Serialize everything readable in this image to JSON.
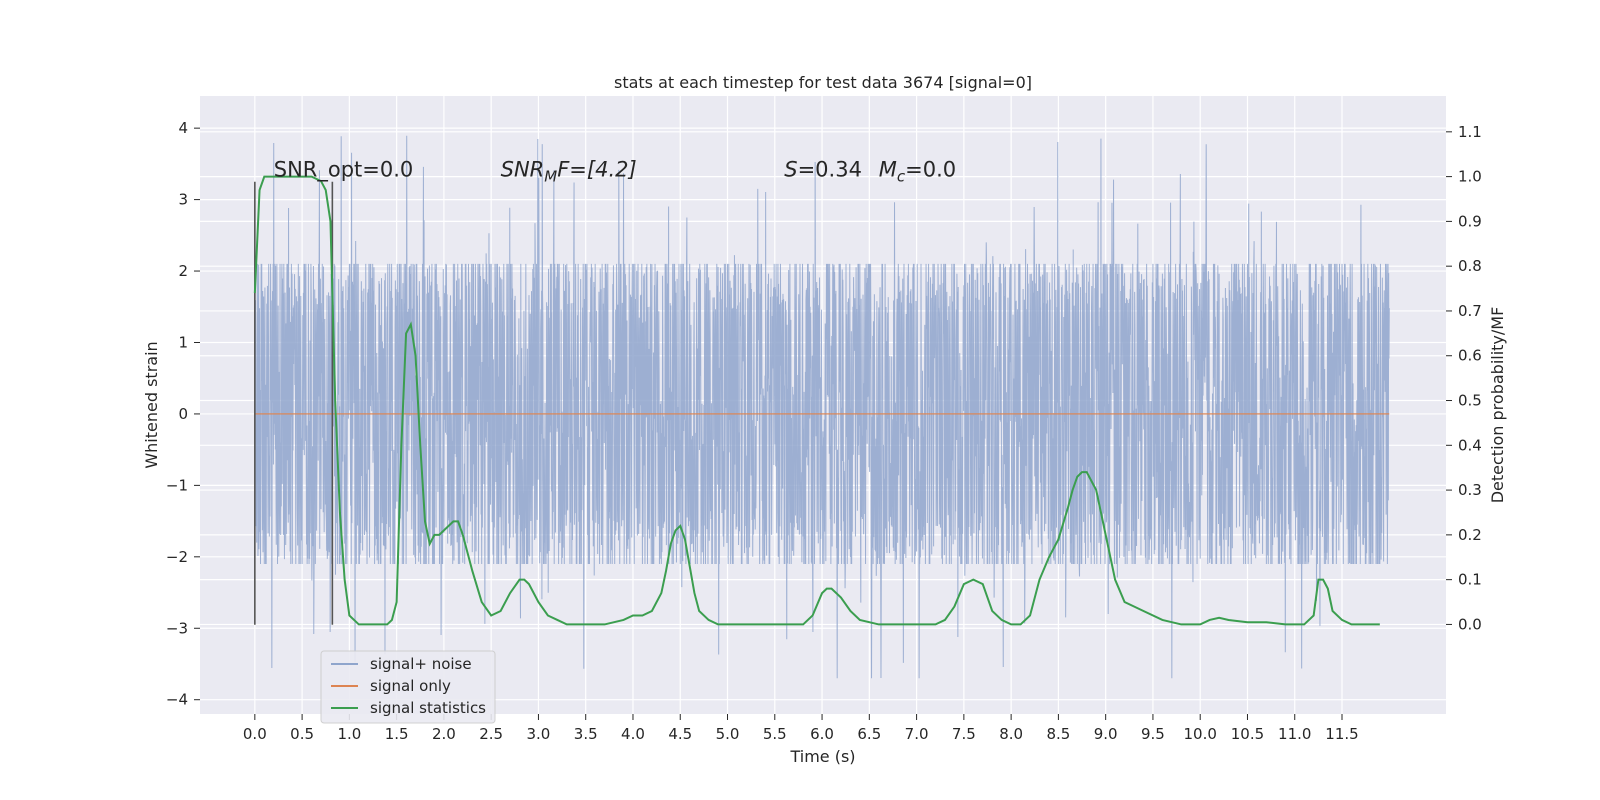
{
  "chart_data": {
    "type": "line",
    "title": "stats at each timestep for test data 3674 [signal=0]",
    "xlabel": "Time (s)",
    "ylabel": "Whitened strain",
    "y2label": "Detection probability/MF",
    "xlim": [
      -0.58,
      12.6
    ],
    "ylim": [
      -4.2,
      4.45
    ],
    "y2lim": [
      -0.2,
      1.18
    ],
    "x_ticks": [
      "0.0",
      "0.5",
      "1.0",
      "1.5",
      "2.0",
      "2.5",
      "3.0",
      "3.5",
      "4.0",
      "4.5",
      "5.0",
      "5.5",
      "6.0",
      "6.5",
      "7.0",
      "7.5",
      "8.0",
      "8.5",
      "9.0",
      "9.5",
      "10.0",
      "10.5",
      "11.0",
      "11.5"
    ],
    "y_ticks": [
      "4",
      "3",
      "2",
      "1",
      "0",
      "−1",
      "−2",
      "−3",
      "−4"
    ],
    "y2_ticks": [
      "1.1",
      "1.0",
      "0.9",
      "0.8",
      "0.7",
      "0.6",
      "0.5",
      "0.4",
      "0.3",
      "0.2",
      "0.1",
      "0.0"
    ],
    "grid": true,
    "legend_position": "lower-left",
    "colors": {
      "plot_bg": "#eaeaf2",
      "grid": "#ffffff",
      "noise": "#8fa5cc",
      "signal_only": "#dd8452",
      "statistics": "#3b9e4f",
      "window": "#555555"
    },
    "series": [
      {
        "name": "signal+ noise",
        "kind": "noise",
        "x_start": 0.0,
        "x_end": 12.0,
        "typical_abs_max": 2.1,
        "peak_max": 4.1,
        "peak_min": -3.7
      },
      {
        "name": "signal only",
        "kind": "flat",
        "value": 0.0
      },
      {
        "name": "signal statistics",
        "axis": "right",
        "x": [
          0.0,
          0.05,
          0.1,
          0.15,
          0.25,
          0.4,
          0.6,
          0.7,
          0.75,
          0.8,
          0.85,
          0.9,
          0.95,
          1.0,
          1.1,
          1.2,
          1.3,
          1.4,
          1.45,
          1.5,
          1.55,
          1.6,
          1.65,
          1.7,
          1.75,
          1.8,
          1.85,
          1.9,
          1.95,
          2.0,
          2.05,
          2.1,
          2.15,
          2.2,
          2.3,
          2.4,
          2.5,
          2.6,
          2.7,
          2.8,
          2.85,
          2.9,
          3.0,
          3.1,
          3.2,
          3.3,
          3.5,
          3.7,
          3.9,
          4.0,
          4.1,
          4.2,
          4.3,
          4.35,
          4.4,
          4.45,
          4.5,
          4.55,
          4.6,
          4.65,
          4.7,
          4.8,
          4.9,
          5.0,
          5.2,
          5.4,
          5.6,
          5.8,
          5.9,
          6.0,
          6.05,
          6.1,
          6.2,
          6.3,
          6.4,
          6.6,
          6.8,
          7.0,
          7.2,
          7.3,
          7.4,
          7.5,
          7.6,
          7.7,
          7.75,
          7.8,
          7.9,
          8.0,
          8.1,
          8.2,
          8.3,
          8.4,
          8.5,
          8.6,
          8.65,
          8.7,
          8.75,
          8.8,
          8.85,
          8.9,
          8.95,
          9.0,
          9.1,
          9.2,
          9.3,
          9.4,
          9.6,
          9.8,
          10.0,
          10.1,
          10.2,
          10.3,
          10.5,
          10.7,
          10.9,
          11.0,
          11.1,
          11.2,
          11.25,
          11.3,
          11.35,
          11.4,
          11.5,
          11.6,
          11.8,
          11.9
        ],
        "y": [
          0.74,
          0.97,
          1.0,
          1.0,
          1.0,
          1.0,
          1.0,
          0.99,
          0.97,
          0.9,
          0.5,
          0.25,
          0.1,
          0.02,
          0.0,
          0.0,
          0.0,
          0.0,
          0.01,
          0.05,
          0.4,
          0.65,
          0.67,
          0.6,
          0.4,
          0.23,
          0.18,
          0.2,
          0.2,
          0.21,
          0.22,
          0.23,
          0.23,
          0.2,
          0.12,
          0.05,
          0.02,
          0.03,
          0.07,
          0.1,
          0.1,
          0.09,
          0.05,
          0.02,
          0.01,
          0.0,
          0.0,
          0.0,
          0.01,
          0.02,
          0.02,
          0.03,
          0.07,
          0.12,
          0.18,
          0.21,
          0.22,
          0.19,
          0.13,
          0.07,
          0.03,
          0.01,
          0.0,
          0.0,
          0.0,
          0.0,
          0.0,
          0.0,
          0.02,
          0.07,
          0.08,
          0.08,
          0.06,
          0.03,
          0.01,
          0.0,
          0.0,
          0.0,
          0.0,
          0.01,
          0.04,
          0.09,
          0.1,
          0.09,
          0.06,
          0.03,
          0.01,
          0.0,
          0.0,
          0.02,
          0.1,
          0.15,
          0.19,
          0.26,
          0.3,
          0.33,
          0.34,
          0.34,
          0.32,
          0.3,
          0.25,
          0.2,
          0.1,
          0.05,
          0.04,
          0.03,
          0.01,
          0.0,
          0.0,
          0.01,
          0.015,
          0.01,
          0.005,
          0.005,
          0.0,
          0.0,
          0.0,
          0.02,
          0.1,
          0.1,
          0.08,
          0.03,
          0.01,
          0.0,
          0.0,
          0.0
        ]
      }
    ],
    "window_lines": [
      {
        "x": 0.0,
        "y0": -2.95,
        "y1": 3.25
      },
      {
        "x": 0.82,
        "y0": -2.95,
        "y1": 3.25
      }
    ],
    "annotations": [
      {
        "id": "snr-opt",
        "text": "SNR_opt=0.0",
        "x": 0.2,
        "y": 3.32
      },
      {
        "id": "snr-mf-pre",
        "text": "SNR",
        "x": 2.6,
        "y": 3.32
      },
      {
        "id": "snr-mf-sub",
        "text": "M"
      },
      {
        "id": "snr-mf-post",
        "text": "F=[4.2]"
      },
      {
        "id": "s-val-sym",
        "text": "S",
        "x": 5.6,
        "y": 3.32
      },
      {
        "id": "s-val-rest",
        "text": "=0.34"
      },
      {
        "id": "mc-sym",
        "text": "M",
        "x": 6.6,
        "y": 3.32
      },
      {
        "id": "mc-sub",
        "text": "c"
      },
      {
        "id": "mc-rest",
        "text": "=0.0"
      }
    ]
  }
}
